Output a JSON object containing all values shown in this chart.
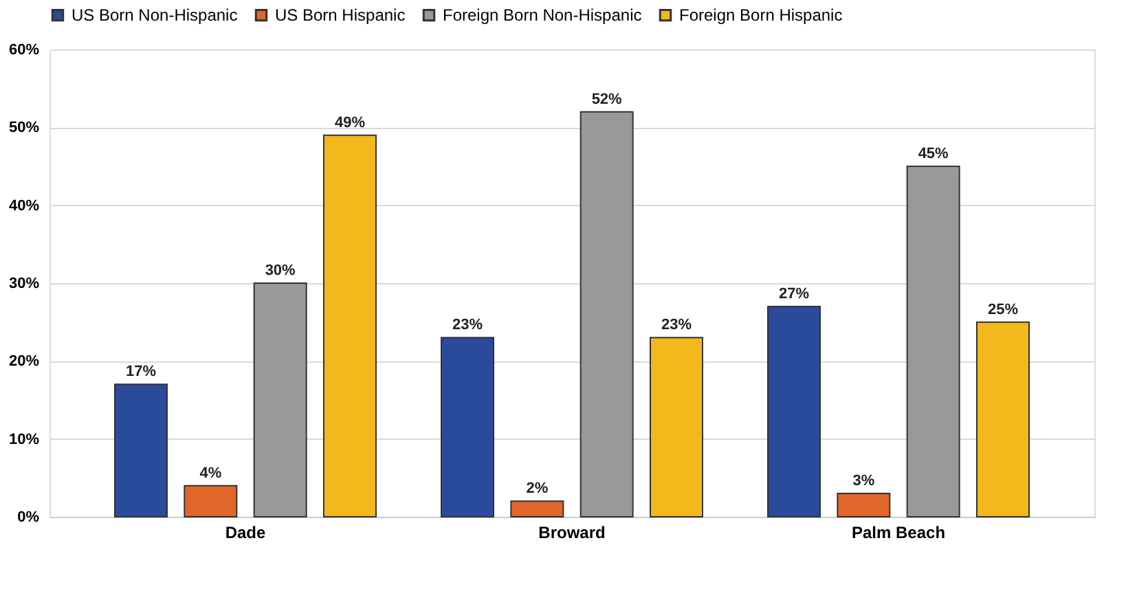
{
  "chart_data": {
    "type": "bar",
    "categories": [
      "Dade",
      "Broward",
      "Palm Beach"
    ],
    "series": [
      {
        "name": "US Born Non-Hispanic",
        "color": "#2a4a9c",
        "values": [
          17,
          23,
          27
        ],
        "value_labels": [
          "17%",
          "23%",
          "27%"
        ]
      },
      {
        "name": "US Born Hispanic",
        "color": "#e0662a",
        "values": [
          4,
          2,
          3
        ],
        "value_labels": [
          "4%",
          "2%",
          "3%"
        ]
      },
      {
        "name": "Foreign Born Non-Hispanic",
        "color": "#999999",
        "values": [
          30,
          52,
          45
        ],
        "value_labels": [
          "30%",
          "52%",
          "45%"
        ]
      },
      {
        "name": "Foreign Born Hispanic",
        "color": "#f2b81c",
        "values": [
          49,
          23,
          25
        ],
        "value_labels": [
          "49%",
          "23%",
          "25%"
        ]
      }
    ],
    "ylim": [
      0,
      60
    ],
    "yticks": [
      {
        "value": 0,
        "label": "0%"
      },
      {
        "value": 10,
        "label": "10%"
      },
      {
        "value": 20,
        "label": "20%"
      },
      {
        "value": 30,
        "label": "30%"
      },
      {
        "value": 40,
        "label": "40%"
      },
      {
        "value": 50,
        "label": "50%"
      },
      {
        "value": 60,
        "label": "60%"
      }
    ],
    "grid": "y",
    "legend": "top"
  }
}
